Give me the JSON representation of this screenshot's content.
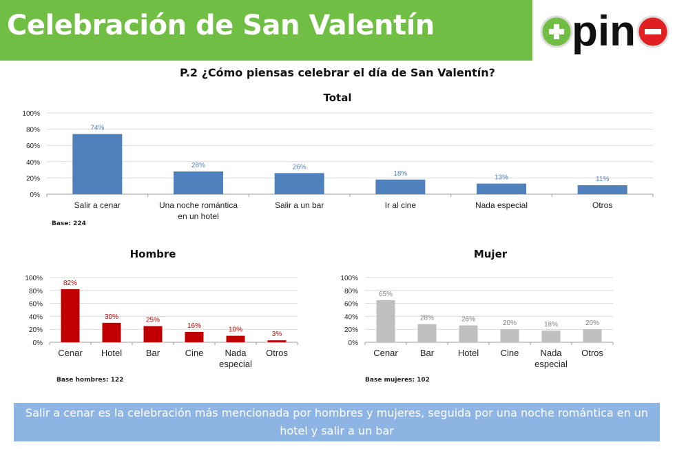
{
  "header": {
    "title": "Celebración de San Valentín",
    "logo_text": "+pino-"
  },
  "question": "P.2 ¿Cómo piensas celebrar el día de San Valentín?",
  "chart_data": [
    {
      "id": "total",
      "type": "bar",
      "title": "Total",
      "categories": [
        "Salir a cenar",
        "Una noche romántica|en un hotel",
        "Salir a un bar",
        "Ir al cine",
        "Nada especial",
        "Otros"
      ],
      "values": [
        74,
        28,
        26,
        18,
        13,
        11
      ],
      "value_labels": [
        "74%",
        "28%",
        "26%",
        "18%",
        "13%",
        "11%"
      ],
      "yticks": [
        "0%",
        "20%",
        "40%",
        "60%",
        "80%",
        "100%"
      ],
      "ylim": [
        0,
        100
      ],
      "color": "#4f81bd",
      "label_color": "#4f81bd",
      "base": "Base: 224",
      "grid": true
    },
    {
      "id": "hombre",
      "type": "bar",
      "title": "Hombre",
      "categories": [
        "Cenar",
        "Hotel",
        "Bar",
        "Cine",
        "Nada|especial",
        "Otros"
      ],
      "values": [
        82,
        30,
        25,
        16,
        10,
        3
      ],
      "value_labels": [
        "82%",
        "30%",
        "25%",
        "16%",
        "10%",
        "3%"
      ],
      "yticks": [
        "0%",
        "20%",
        "40%",
        "60%",
        "80%",
        "100%"
      ],
      "ylim": [
        0,
        100
      ],
      "color": "#c00000",
      "label_color": "#c00000",
      "base": "Base hombres: 122",
      "grid": true
    },
    {
      "id": "mujer",
      "type": "bar",
      "title": "Mujer",
      "categories": [
        "Cenar",
        "Bar",
        "Hotel",
        "Cine",
        "Nada|especial",
        "Otros"
      ],
      "values": [
        65,
        28,
        26,
        20,
        18,
        20
      ],
      "value_labels": [
        "65%",
        "28%",
        "26%",
        "20%",
        "18%",
        "20%"
      ],
      "yticks": [
        "0%",
        "20%",
        "40%",
        "60%",
        "80%",
        "100%"
      ],
      "ylim": [
        0,
        100
      ],
      "color": "#bfbfbf",
      "label_color": "#808080",
      "base": "Base mujeres: 102",
      "grid": true
    }
  ],
  "note": "Salir a cenar es la celebración más mencionada por hombres y mujeres, seguida por una noche romántica en un hotel y salir a un bar"
}
